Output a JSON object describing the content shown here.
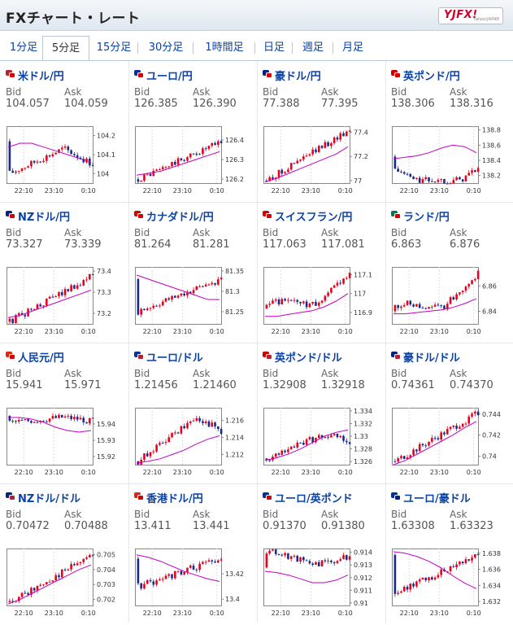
{
  "header": {
    "title": "FXチャート・レート",
    "logo_text": "YJFX!",
    "logo_sub": "Yahoo!JAPAN"
  },
  "tabs": [
    {
      "label": "1分足",
      "active": false
    },
    {
      "label": "5分足",
      "active": true
    },
    {
      "label": "15分足",
      "active": false
    },
    {
      "label": "30分足",
      "active": false
    },
    {
      "label": "1時間足",
      "active": false
    },
    {
      "label": "日足",
      "active": false
    },
    {
      "label": "週足",
      "active": false
    },
    {
      "label": "月足",
      "active": false
    }
  ],
  "labels": {
    "bid": "Bid",
    "ask": "Ask"
  },
  "x_ticks": [
    "22:10",
    "23:10",
    "0:10"
  ],
  "colors": {
    "up": "#e8001c",
    "down": "#1b2a8a",
    "ma": "#c400c4",
    "link": "#0a43a5"
  },
  "pairs": [
    {
      "name": "米ドル/円",
      "bid": "104.057",
      "ask": "104.059",
      "flags": [
        "#b22234",
        "#d80000"
      ],
      "y_ticks": [
        "104.2",
        "104.1",
        "104"
      ],
      "ylim": [
        103.95,
        104.25
      ],
      "trend": "down-u",
      "chart_data": {
        "type": "candlestick",
        "start": 104.17,
        "end": 104.05,
        "ma": [
          104.14,
          104.16,
          104.16,
          104.14,
          104.12,
          104.1,
          104.08,
          104.06
        ]
      }
    },
    {
      "name": "ユーロ/円",
      "bid": "126.385",
      "ask": "126.390",
      "flags": [
        "#003399",
        "#d80000"
      ],
      "y_ticks": [
        "126.4",
        "126.3",
        "126.2"
      ],
      "ylim": [
        126.18,
        126.47
      ],
      "trend": "up",
      "chart_data": {
        "type": "candlestick",
        "start": 126.2,
        "end": 126.39,
        "ma": [
          126.22,
          126.23,
          126.24,
          126.26,
          126.28,
          126.3,
          126.32,
          126.34
        ]
      }
    },
    {
      "name": "豪ドル/円",
      "bid": "77.388",
      "ask": "77.395",
      "flags": [
        "#00247d",
        "#d80000"
      ],
      "y_ticks": [
        "77.4",
        "77.2",
        "77"
      ],
      "ylim": [
        76.98,
        77.45
      ],
      "trend": "up",
      "chart_data": {
        "type": "candlestick",
        "start": 77.0,
        "end": 77.42,
        "ma": [
          76.99,
          77.02,
          77.06,
          77.1,
          77.14,
          77.18,
          77.22,
          77.28
        ]
      }
    },
    {
      "name": "英ポンド/円",
      "bid": "138.306",
      "ask": "138.316",
      "flags": [
        "#cc0000",
        "#d80000"
      ],
      "y_ticks": [
        "138.8",
        "138.6",
        "138.4",
        "138.2"
      ],
      "ylim": [
        138.1,
        138.85
      ],
      "trend": "hump",
      "chart_data": {
        "type": "candlestick",
        "start": 138.45,
        "end": 138.3,
        "ma": [
          138.42,
          138.44,
          138.46,
          138.5,
          138.56,
          138.6,
          138.58,
          138.5
        ]
      }
    },
    {
      "name": "NZドル/円",
      "bid": "73.327",
      "ask": "73.339",
      "flags": [
        "#00247d",
        "#d80000"
      ],
      "y_ticks": [
        "73.4",
        "73.3",
        "73.2"
      ],
      "ylim": [
        73.15,
        73.42
      ],
      "trend": "up",
      "chart_data": {
        "type": "candlestick",
        "start": 73.16,
        "end": 73.38,
        "ma": [
          73.18,
          73.19,
          73.21,
          73.23,
          73.25,
          73.27,
          73.29,
          73.31
        ]
      }
    },
    {
      "name": "カナダドル/円",
      "bid": "81.264",
      "ask": "81.281",
      "flags": [
        "#d80000",
        "#d80000"
      ],
      "y_ticks": [
        "81.35",
        "81.3",
        "81.25"
      ],
      "ylim": [
        81.22,
        81.36
      ],
      "trend": "down",
      "chart_data": {
        "type": "candlestick",
        "start": 81.33,
        "end": 81.25,
        "ma": [
          81.34,
          81.33,
          81.32,
          81.31,
          81.3,
          81.29,
          81.28,
          81.28
        ]
      }
    },
    {
      "name": "スイスフラン/円",
      "bid": "117.063",
      "ask": "117.081",
      "flags": [
        "#d80000",
        "#d80000"
      ],
      "y_ticks": [
        "117.1",
        "117",
        "116.9"
      ],
      "ylim": [
        116.84,
        117.14
      ],
      "trend": "late-up",
      "chart_data": {
        "type": "candlestick",
        "start": 116.92,
        "end": 117.1,
        "ma": [
          116.88,
          116.88,
          116.89,
          116.9,
          116.91,
          116.93,
          116.96,
          117.0
        ]
      }
    },
    {
      "name": "ランド/円",
      "bid": "6.863",
      "ask": "6.876",
      "flags": [
        "#007a4d",
        "#d80000"
      ],
      "y_ticks": [
        "6.86",
        "6.84"
      ],
      "ylim": [
        6.83,
        6.875
      ],
      "trend": "late-up",
      "chart_data": {
        "type": "candlestick",
        "start": 6.84,
        "end": 6.87,
        "ma": [
          6.838,
          6.838,
          6.839,
          6.84,
          6.841,
          6.843,
          6.846,
          6.85
        ]
      }
    },
    {
      "name": "人民元/円",
      "bid": "15.941",
      "ask": "15.971",
      "flags": [
        "#de2910",
        "#d80000"
      ],
      "y_ticks": [
        "15.94",
        "15.93",
        "15.92"
      ],
      "ylim": [
        15.915,
        15.95
      ],
      "trend": "down-u",
      "chart_data": {
        "type": "candlestick",
        "start": 15.945,
        "end": 15.942,
        "ma": [
          15.944,
          15.944,
          15.943,
          15.941,
          15.938,
          15.936,
          15.935,
          15.936
        ]
      }
    },
    {
      "name": "ユーロ/ドル",
      "bid": "1.21456",
      "ask": "1.21460",
      "flags": [
        "#003399",
        "#b22234"
      ],
      "y_ticks": [
        "1.216",
        "1.214",
        "1.212"
      ],
      "ylim": [
        1.2108,
        1.2175
      ],
      "trend": "hump-late",
      "chart_data": {
        "type": "candlestick",
        "start": 1.2112,
        "end": 1.2148,
        "ma": [
          1.211,
          1.2112,
          1.2115,
          1.212,
          1.2125,
          1.2132,
          1.2138,
          1.2142
        ]
      }
    },
    {
      "name": "英ポンド/ドル",
      "bid": "1.32908",
      "ask": "1.32918",
      "flags": [
        "#cc0000",
        "#b22234"
      ],
      "y_ticks": [
        "1.334",
        "1.332",
        "1.33",
        "1.328",
        "1.326"
      ],
      "ylim": [
        1.3255,
        1.3345
      ],
      "trend": "hump-late",
      "chart_data": {
        "type": "candlestick",
        "start": 1.3265,
        "end": 1.3292,
        "ma": [
          1.3262,
          1.3266,
          1.3272,
          1.328,
          1.329,
          1.33,
          1.3306,
          1.331
        ]
      }
    },
    {
      "name": "豪ドル/ドル",
      "bid": "0.74361",
      "ask": "0.74370",
      "flags": [
        "#00247d",
        "#b22234"
      ],
      "y_ticks": [
        "0.744",
        "0.742",
        "0.74"
      ],
      "ylim": [
        0.7392,
        0.7446
      ],
      "trend": "up",
      "chart_data": {
        "type": "candlestick",
        "start": 0.7395,
        "end": 0.7441,
        "ma": [
          0.7392,
          0.7396,
          0.7402,
          0.7408,
          0.7414,
          0.742,
          0.7427,
          0.7433
        ]
      }
    },
    {
      "name": "NZドル/ドル",
      "bid": "0.70472",
      "ask": "0.70488",
      "flags": [
        "#00247d",
        "#b22234"
      ],
      "y_ticks": [
        "0.705",
        "0.704",
        "0.703",
        "0.702"
      ],
      "ylim": [
        0.7016,
        0.7054
      ],
      "trend": "up",
      "chart_data": {
        "type": "candlestick",
        "start": 0.7018,
        "end": 0.705,
        "ma": [
          0.7017,
          0.702,
          0.7024,
          0.7028,
          0.7032,
          0.7036,
          0.704,
          0.7043
        ]
      }
    },
    {
      "name": "香港ドル/円",
      "bid": "13.411",
      "ask": "13.441",
      "flags": [
        "#de2910",
        "#d80000"
      ],
      "y_ticks": [
        "13.42",
        "13.4"
      ],
      "ylim": [
        13.395,
        13.44
      ],
      "trend": "down",
      "chart_data": {
        "type": "candlestick",
        "start": 13.432,
        "end": 13.41,
        "ma": [
          13.435,
          13.433,
          13.43,
          13.426,
          13.422,
          13.419,
          13.416,
          13.414
        ]
      }
    },
    {
      "name": "ユーロ/英ポンド",
      "bid": "0.91370",
      "ask": "0.91380",
      "flags": [
        "#003399",
        "#cc0000"
      ],
      "y_ticks": [
        "0.914",
        "0.913",
        "0.912",
        "0.911",
        "0.91"
      ],
      "ylim": [
        0.9098,
        0.9143
      ],
      "trend": "down-u",
      "chart_data": {
        "type": "candlestick",
        "start": 0.9128,
        "end": 0.9137,
        "ma": [
          0.9125,
          0.9124,
          0.9122,
          0.9119,
          0.9116,
          0.9116,
          0.9118,
          0.9122
        ]
      }
    },
    {
      "name": "ユーロ/豪ドル",
      "bid": "1.63308",
      "ask": "1.63323",
      "flags": [
        "#003399",
        "#00247d"
      ],
      "y_ticks": [
        "1.638",
        "1.636",
        "1.634",
        "1.632"
      ],
      "ylim": [
        1.6315,
        1.6386
      ],
      "trend": "down",
      "chart_data": {
        "type": "candlestick",
        "start": 1.6378,
        "end": 1.633,
        "ma": [
          1.6382,
          1.638,
          1.6376,
          1.637,
          1.6362,
          1.6352,
          1.6343,
          1.6336
        ]
      }
    }
  ]
}
